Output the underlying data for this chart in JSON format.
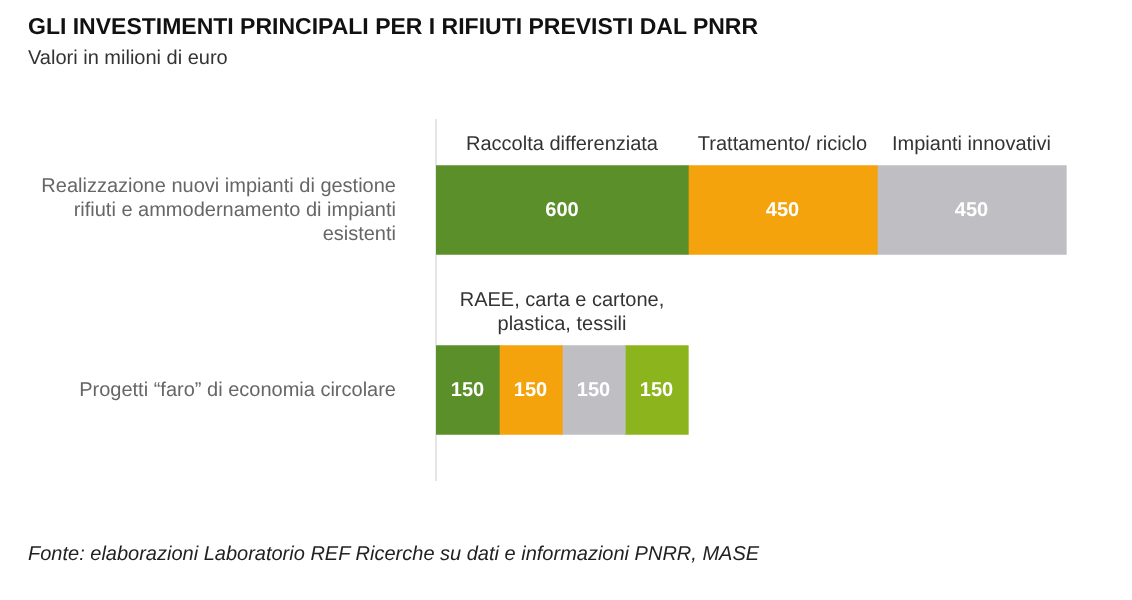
{
  "chart_data": {
    "type": "bar",
    "orientation": "horizontal",
    "stacked": true,
    "title": "GLI INVESTIMENTI PRINCIPALI PER I RIFIUTI PREVISTI DAL PNRR",
    "subtitle": "Valori in milioni di euro",
    "categories": [
      "Realizzazione nuovi impianti di gestione rifiuti e ammodernamento di impianti esistenti",
      "Progetti “faro” di economia circolare"
    ],
    "series": [
      {
        "color": "#5b8f2a",
        "values": [
          600,
          150
        ]
      },
      {
        "color": "#f4a30c",
        "values": [
          450,
          150
        ]
      },
      {
        "color": "#bfbfc3",
        "values": [
          450,
          150
        ]
      },
      {
        "color": "#8cb51d",
        "values": [
          null,
          150
        ]
      }
    ],
    "data_labels": true,
    "legend": false,
    "annotations": [
      "Raccolta differenziata",
      "Trattamento/ riciclo",
      "Impianti innovativi",
      "RAEE, carta e cartone, plastica, tessili",
      "Fonte: elaborazioni Laboratorio REF Ricerche su dati e informazioni PNRR, MASE"
    ]
  }
}
